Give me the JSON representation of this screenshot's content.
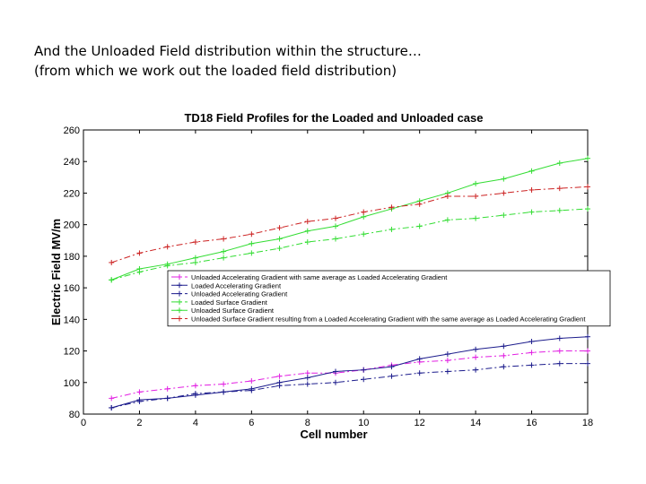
{
  "slide": {
    "line1": "And the Unloaded Field distribution within the structure…",
    "line2": "(from which we work out the loaded field distribution)"
  },
  "chart_data": {
    "type": "line",
    "title": "TD18 Field Profiles for the Loaded and Unloaded case",
    "xlabel": "Cell number",
    "ylabel": "Electric Field MV/m",
    "xlim": [
      0,
      18
    ],
    "ylim": [
      80,
      260
    ],
    "xticks": [
      0,
      2,
      4,
      6,
      8,
      10,
      12,
      14,
      16,
      18
    ],
    "yticks": [
      80,
      100,
      120,
      140,
      160,
      180,
      200,
      220,
      240,
      260
    ],
    "grid": false,
    "legend_position": "center-right",
    "x": [
      1,
      2,
      3,
      4,
      5,
      6,
      7,
      8,
      9,
      10,
      11,
      12,
      13,
      14,
      15,
      16,
      17,
      18
    ],
    "series": [
      {
        "name": "Unloaded Accelerating Gradient with same average as Loaded Accelerating Gradient",
        "color": "#e21fe2",
        "dash": "dashdot",
        "values": [
          90,
          94,
          96,
          98,
          99,
          101,
          104,
          106,
          106,
          108,
          111,
          113,
          114,
          116,
          117,
          119,
          120,
          120
        ]
      },
      {
        "name": "Loaded Accelerating Gradient",
        "color": "#1c1c8c",
        "dash": "solid",
        "values": [
          84,
          89,
          90,
          92,
          94,
          96,
          100,
          103,
          107,
          108,
          110,
          115,
          118,
          121,
          123,
          126,
          128,
          129
        ]
      },
      {
        "name": "Unloaded Accelerating Gradient",
        "color": "#1c1c8c",
        "dash": "dashdot",
        "values": [
          84,
          88,
          90,
          93,
          94,
          95,
          98,
          99,
          100,
          102,
          104,
          106,
          107,
          108,
          110,
          111,
          112,
          112
        ]
      },
      {
        "name": "Loaded Surface Gradient",
        "color": "#33dd33",
        "dash": "dashdot",
        "values": [
          165,
          170,
          174,
          176,
          179,
          182,
          185,
          189,
          191,
          194,
          197,
          199,
          203,
          204,
          206,
          208,
          209,
          210
        ]
      },
      {
        "name": "Unloaded Surface Gradient",
        "color": "#33dd33",
        "dash": "solid",
        "values": [
          165,
          172,
          175,
          179,
          183,
          188,
          191,
          196,
          199,
          205,
          210,
          215,
          220,
          226,
          229,
          234,
          239,
          242
        ]
      },
      {
        "name": "Unloaded Surface Gradient resulting from a Loaded Accelerating Gradient with the same average as Loaded Accelerating Gradient",
        "color": "#cc2222",
        "dash": "dashdot",
        "values": [
          176,
          182,
          186,
          189,
          191,
          194,
          198,
          202,
          204,
          208,
          211,
          213,
          218,
          218,
          220,
          222,
          223,
          224
        ]
      }
    ]
  }
}
